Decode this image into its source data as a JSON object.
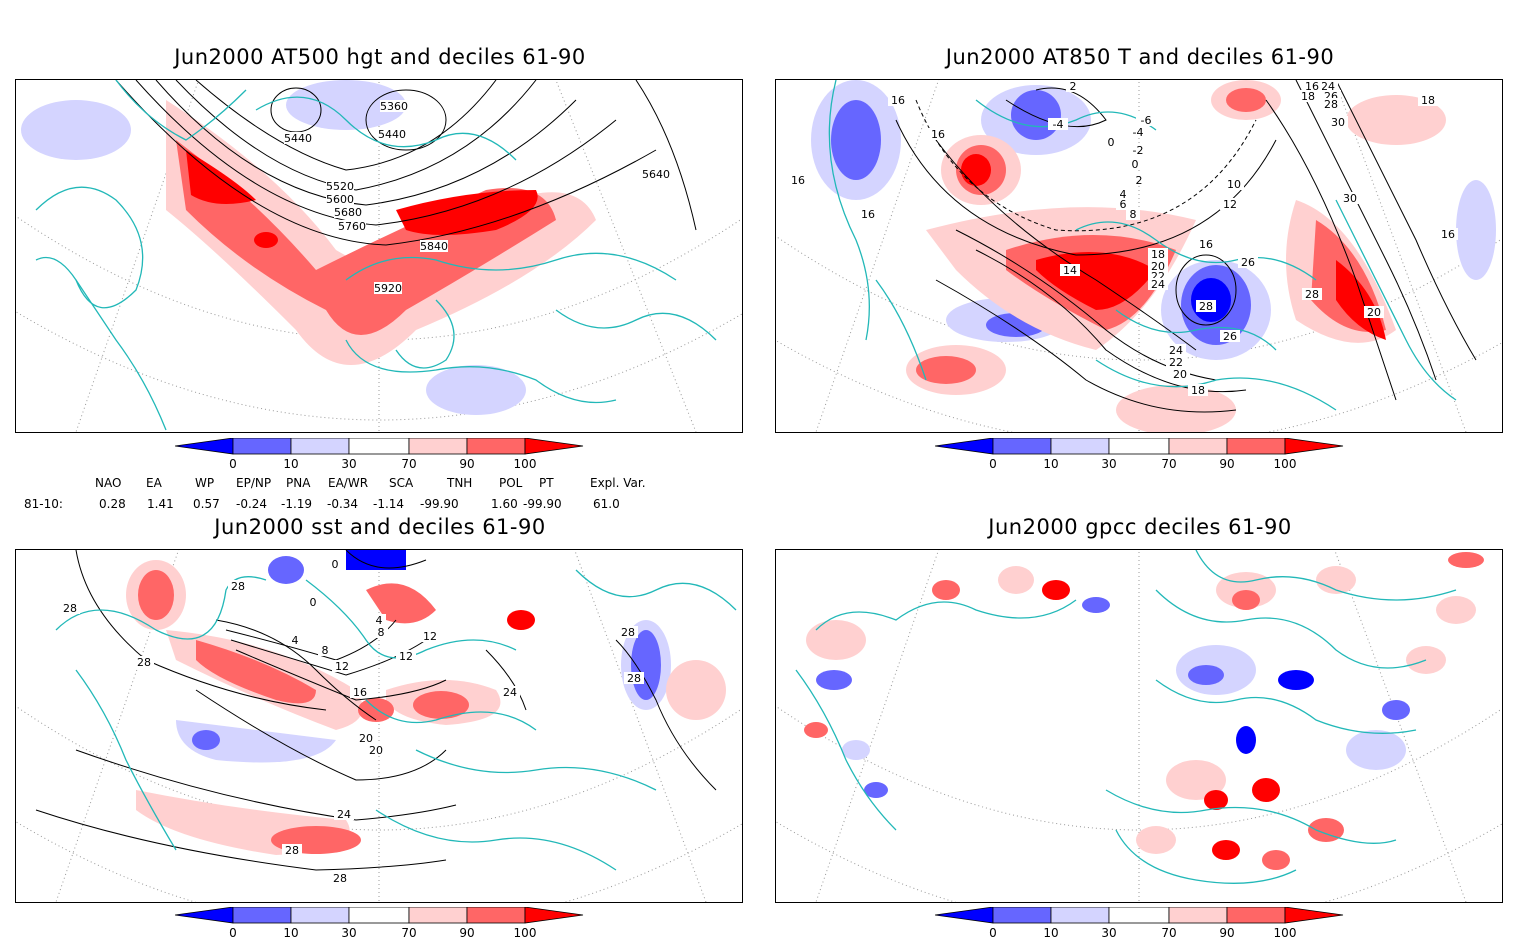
{
  "panels": [
    {
      "id": "hgt",
      "title": "Jun2000 AT500 hgt and deciles 61-90",
      "contour_labels": [
        "5360",
        "5440",
        "5440",
        "5520",
        "5600",
        "5680",
        "5760",
        "5840",
        "5920",
        "5640"
      ]
    },
    {
      "id": "t850",
      "title": "Jun2000 AT850 T and deciles 61-90",
      "contour_labels": [
        "2",
        "16",
        "16",
        "-4",
        "-6",
        "-4",
        "-2",
        "0",
        "0",
        "2",
        "4",
        "6",
        "8",
        "10",
        "12",
        "14",
        "16",
        "18",
        "20",
        "22",
        "24",
        "26",
        "28",
        "26",
        "24",
        "22",
        "20",
        "18",
        "16",
        "16",
        "16",
        "18",
        "24",
        "26",
        "28",
        "30",
        "30",
        "28",
        "20",
        "18",
        "16"
      ]
    },
    {
      "id": "sst",
      "title": "Jun2000 sst and deciles 61-90",
      "contour_labels": [
        "28",
        "28",
        "28",
        "4",
        "8",
        "12",
        "16",
        "20",
        "20",
        "24",
        "28",
        "28",
        "24",
        "28",
        "28",
        "12",
        "12",
        "0",
        "0",
        "4",
        "8"
      ]
    },
    {
      "id": "gpcc",
      "title": "Jun2000 gpcc deciles 61-90",
      "contour_labels": []
    }
  ],
  "colorbar": {
    "ticks": [
      "0",
      "10",
      "30",
      "70",
      "90",
      "100"
    ],
    "colors": [
      "#0000ff",
      "#6666ff",
      "#d4d4ff",
      "#ffffff",
      "#ffd0d0",
      "#ff6666",
      "#ff0000"
    ]
  },
  "indices": {
    "headers": [
      "NAO",
      "EA",
      "WP",
      "EP/NP",
      "PNA",
      "EA/WR",
      "SCA",
      "TNH",
      "POL",
      "PT",
      "Expl. Var."
    ],
    "row_label": "81-10:",
    "values": [
      "0.28",
      "1.41",
      "0.57",
      "-0.24",
      "-1.19",
      "-0.34",
      "-1.14",
      "-99.90",
      "1.60",
      "-99.90",
      "61.0"
    ]
  }
}
